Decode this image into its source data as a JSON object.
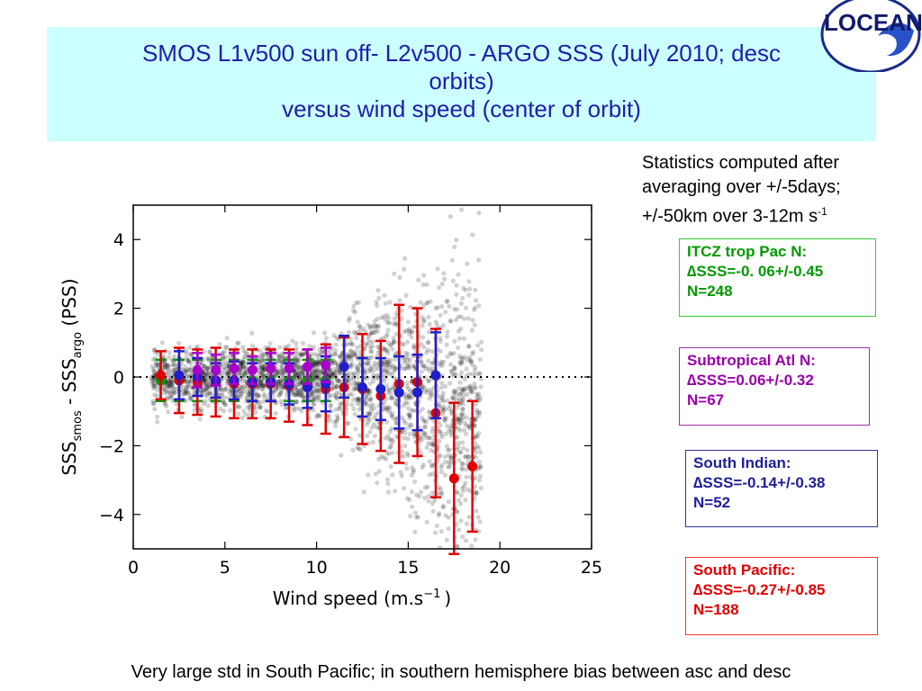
{
  "title": {
    "line1": "SMOS L1v500 sun off- L2v500 - ARGO SSS (July 2010; desc",
    "line2": "orbits)",
    "line3": "versus wind speed (center of orbit)"
  },
  "logo": {
    "text": "LOCEAN",
    "icon": "wave-logo-icon"
  },
  "stats_note": {
    "line1": "Statistics computed after",
    "line2": "averaging over +/-5days;",
    "line3": "+/-50km over 3-12m s",
    "sup": "-1"
  },
  "regions": [
    {
      "name": "ITCZ trop Pac N:",
      "stat": "∆SSS=-0. 06+/-0.45",
      "n": "N=248",
      "color": "#009900"
    },
    {
      "name": "Subtropical Atl N:",
      "stat": "∆SSS=0.06+/-0.32",
      "n": "N=67",
      "color": "#9900aa"
    },
    {
      "name": "South Indian:",
      "stat": "∆SSS=-0.14+/-0.38",
      "n": "N=52",
      "color": "#1f1fcc"
    },
    {
      "name": "South Pacific:",
      "stat": "∆SSS=-0.27+/-0.85",
      "n": "N=188",
      "color": "#e00000"
    }
  ],
  "footer": "Very large std in South Pacific; in southern hemisphere bias between asc and desc",
  "chart_data": {
    "type": "scatter",
    "xlabel": "Wind speed (m.s",
    "xlabel_sup": "−1",
    "xlabel_end": ")",
    "ylabel_parts": [
      "SSS",
      "smos",
      " - SSS",
      "argo",
      " (PSS)"
    ],
    "xlim": [
      0,
      25
    ],
    "ylim": [
      -5,
      5
    ],
    "xticks": [
      0,
      5,
      10,
      15,
      20,
      25
    ],
    "yticks": [
      4,
      2,
      0,
      -2,
      -4
    ],
    "ytick_labels": [
      "4",
      "2",
      "0",
      "−2",
      "−4"
    ],
    "zero_line": {
      "y": 0,
      "style": "dotted"
    },
    "background_cloud": {
      "color": "#000000",
      "description_x_range": [
        1,
        19
      ]
    },
    "series": [
      {
        "color": "#009900",
        "x": [
          1.5,
          2.5,
          3.5,
          4.5,
          5.5,
          6.5,
          7.5,
          8.5,
          9.5,
          10.5
        ],
        "y": [
          -0.1,
          -0.1,
          -0.1,
          -0.1,
          -0.1,
          -0.1,
          -0.1,
          -0.1,
          -0.1,
          -0.1
        ],
        "err": [
          0.6,
          0.6,
          0.6,
          0.6,
          0.6,
          0.6,
          0.6,
          0.6,
          0.6,
          0.6
        ]
      },
      {
        "color": "#e00000",
        "x": [
          1.5,
          2.5,
          3.5,
          4.5,
          5.5,
          6.5,
          7.5,
          8.5,
          9.5,
          10.5,
          11.5,
          12.5,
          13.5,
          14.5,
          15.5,
          16.5,
          17.5,
          18.5
        ],
        "y": [
          0.05,
          -0.1,
          -0.15,
          -0.15,
          -0.2,
          -0.2,
          -0.2,
          -0.25,
          -0.3,
          -0.35,
          -0.3,
          -0.35,
          -0.55,
          -0.2,
          -0.15,
          -1.05,
          -2.95,
          -2.6
        ],
        "err": [
          0.7,
          0.95,
          0.95,
          1.0,
          1.0,
          1.0,
          1.0,
          1.05,
          1.1,
          1.3,
          1.45,
          1.6,
          1.6,
          2.3,
          2.15,
          2.45,
          2.2,
          1.9
        ]
      },
      {
        "color": "#1f1fcc",
        "x": [
          2.5,
          3.5,
          4.5,
          5.5,
          6.5,
          7.5,
          8.5,
          9.5,
          10.5,
          11.5,
          12.5,
          13.5,
          14.5,
          15.5,
          16.5
        ],
        "y": [
          0.05,
          0.0,
          -0.1,
          -0.1,
          -0.15,
          -0.15,
          -0.2,
          -0.3,
          -0.2,
          0.3,
          -0.3,
          -0.35,
          -0.45,
          -0.45,
          0.05
        ],
        "err": [
          0.7,
          0.55,
          0.5,
          0.55,
          0.55,
          0.55,
          0.6,
          0.6,
          0.8,
          0.9,
          0.85,
          0.9,
          1.05,
          1.1,
          1.25
        ]
      },
      {
        "color": "#aa00cc",
        "x": [
          3.5,
          4.5,
          5.5,
          6.5,
          7.5,
          8.5,
          9.5,
          10.5
        ],
        "y": [
          0.2,
          0.2,
          0.25,
          0.2,
          0.25,
          0.25,
          0.3,
          0.35
        ],
        "err": [
          0.5,
          0.45,
          0.45,
          0.4,
          0.45,
          0.45,
          0.5,
          0.5
        ]
      }
    ]
  }
}
